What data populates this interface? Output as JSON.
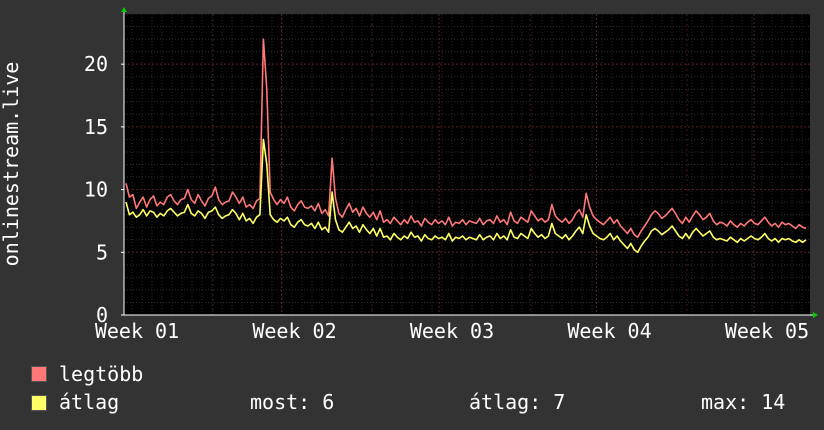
{
  "chart_data": {
    "type": "line",
    "title": "",
    "ylabel": "onlinestream.live",
    "xlabel": "",
    "ylim": [
      0,
      24
    ],
    "yticks": [
      "0",
      "5",
      "10",
      "15",
      "20"
    ],
    "x_ticks": [
      "Week 01",
      "Week 02",
      "Week 03",
      "Week 04",
      "Week 05"
    ],
    "grid": true,
    "legend_position": "bottom-left",
    "colors": {
      "background": "#333333",
      "plot_background": "#000000",
      "grid": "#3a3a3a",
      "axis": "#ffffff",
      "arrow": "#00cc00"
    },
    "series": [
      {
        "name": "legtöbb",
        "color": "#ff7777",
        "values": [
          10.5,
          9.4,
          9.6,
          8.5,
          9,
          9.4,
          8.6,
          9.2,
          9.5,
          8.7,
          9,
          8.8,
          9.4,
          9.6,
          9.1,
          8.8,
          9.2,
          9.3,
          10,
          9.2,
          8.9,
          9.6,
          9.1,
          8.7,
          9.3,
          9.5,
          10.2,
          9.2,
          8.8,
          9,
          9.1,
          9.8,
          9.4,
          8.9,
          9.4,
          8.6,
          8.8,
          8.5,
          9.1,
          9.3,
          22,
          18,
          9.8,
          9.2,
          8.8,
          9.2,
          8.9,
          9.4,
          8.6,
          8.3,
          8.8,
          9.1,
          8.6,
          8.5,
          8.7,
          8.3,
          8.9,
          8.1,
          8.4,
          7.9,
          12.5,
          9.3,
          8.1,
          7.8,
          8.4,
          8.9,
          8.2,
          8.5,
          7.9,
          8.6,
          8.1,
          7.8,
          8.2,
          7.6,
          8.3,
          7.4,
          7.6,
          7.3,
          7.8,
          7.5,
          7.2,
          7.6,
          7.3,
          7.9,
          7.4,
          7.5,
          7.1,
          7.7,
          7.4,
          7.2,
          7.6,
          7.3,
          7.5,
          7.2,
          7.8,
          7.1,
          7.4,
          7.3,
          7.6,
          7.2,
          7.5,
          7.4,
          7.3,
          7.7,
          7.2,
          7.5,
          7.6,
          7.3,
          7.9,
          7.4,
          7.6,
          7.2,
          8.2,
          7.5,
          7.3,
          7.8,
          7.6,
          7.4,
          8.3,
          7.9,
          7.5,
          7.7,
          7.4,
          7.6,
          8.8,
          7.9,
          7.6,
          7.4,
          7.7,
          7.3,
          7.6,
          8.1,
          8.4,
          7.8,
          9.7,
          8.6,
          7.9,
          7.6,
          7.4,
          7.2,
          7.5,
          7.8,
          7.3,
          7.6,
          7.1,
          6.8,
          6.5,
          6.9,
          6.4,
          6.2,
          6.7,
          7.1,
          7.5,
          8,
          8.3,
          8.1,
          7.7,
          7.9,
          8.2,
          8.5,
          8.1,
          7.6,
          7.3,
          7.8,
          7.4,
          7.9,
          8.3,
          8,
          7.6,
          7.8,
          8.1,
          7.5,
          7.2,
          7.4,
          7.3,
          7.1,
          7.5,
          7.2,
          7,
          7.3,
          7.1,
          7.4,
          7.6,
          7.3,
          7.2,
          7.5,
          7.8,
          7.4,
          7.1,
          7.3,
          7,
          7.4,
          7.2,
          7.3,
          7.1,
          6.9,
          7.2,
          7,
          6.9
        ]
      },
      {
        "name": "átlag",
        "color": "#ffff66",
        "values": [
          9,
          8,
          8.2,
          7.8,
          8,
          8.4,
          7.9,
          8.3,
          8.2,
          7.8,
          8.1,
          7.9,
          8.3,
          8.5,
          8.2,
          7.9,
          8.1,
          8.2,
          8.8,
          8.1,
          7.9,
          8.3,
          8.1,
          7.7,
          8.2,
          8.3,
          8.6,
          8,
          7.7,
          7.9,
          8,
          8.4,
          8.1,
          7.6,
          8.1,
          7.5,
          7.7,
          7.3,
          7.8,
          8,
          14,
          12,
          8,
          7.6,
          7.4,
          7.7,
          7.5,
          7.8,
          7.2,
          7,
          7.4,
          7.6,
          7.2,
          7.1,
          7.3,
          6.9,
          7.4,
          6.8,
          7,
          6.6,
          9.8,
          7.6,
          6.8,
          6.6,
          7,
          7.4,
          6.9,
          7.1,
          6.6,
          7.2,
          6.8,
          6.5,
          6.9,
          6.3,
          6.9,
          6.2,
          6.3,
          6,
          6.5,
          6.2,
          6,
          6.3,
          6.1,
          6.6,
          6.2,
          6.3,
          5.9,
          6.4,
          6.1,
          6,
          6.3,
          6.1,
          6.2,
          6,
          6.5,
          5.9,
          6.2,
          6.1,
          6.3,
          6,
          6.2,
          6.1,
          6,
          6.4,
          6,
          6.2,
          6.3,
          6,
          6.5,
          6.1,
          6.3,
          6,
          6.8,
          6.2,
          6.1,
          6.5,
          6.3,
          6.1,
          6.9,
          6.5,
          6.2,
          6.4,
          6.1,
          6.3,
          7.3,
          6.5,
          6.3,
          6.1,
          6.4,
          6,
          6.3,
          6.7,
          7,
          6.5,
          8,
          7.1,
          6.5,
          6.3,
          6.1,
          6,
          6.2,
          6.5,
          6,
          6.3,
          5.9,
          5.6,
          5.3,
          5.7,
          5.2,
          5,
          5.5,
          5.9,
          6.2,
          6.7,
          6.9,
          6.7,
          6.4,
          6.6,
          6.8,
          7.1,
          6.7,
          6.3,
          6.1,
          6.5,
          6.1,
          6.6,
          6.9,
          6.6,
          6.3,
          6.5,
          6.7,
          6.2,
          6,
          6.1,
          6,
          5.9,
          6.2,
          6,
          5.8,
          6.1,
          5.9,
          6.1,
          6.3,
          6.1,
          6,
          6.2,
          6.5,
          6.1,
          5.9,
          6.1,
          5.8,
          6.1,
          6,
          6.1,
          5.9,
          5.8,
          6,
          5.8,
          6
        ]
      }
    ]
  },
  "legend": {
    "items": [
      {
        "label": "legtöbb",
        "color": "#ff7777"
      },
      {
        "label": "átlag",
        "color": "#ffff66"
      }
    ],
    "stats": {
      "now": "most: 6",
      "avg": "átlag: 7",
      "max": "max: 14"
    }
  }
}
